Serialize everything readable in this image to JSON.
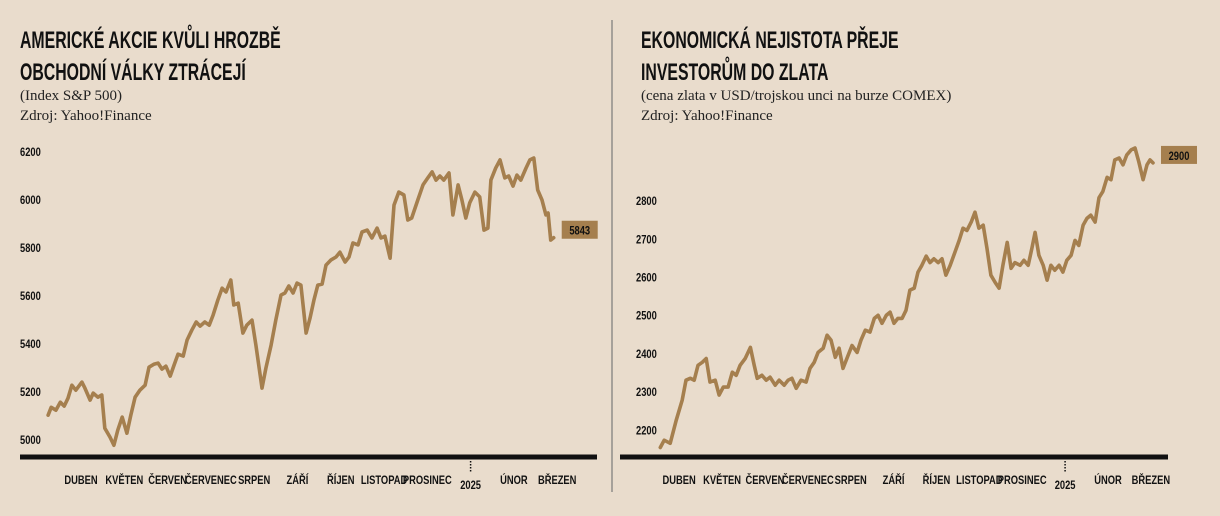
{
  "chart_data": [
    {
      "type": "line",
      "title": [
        "AMERICKÉ AKCIE KVŮLI HROZBĚ",
        "OBCHODNÍ VÁLKY ZTRÁCEJÍ"
      ],
      "subtitle": "(Index S&P 500)",
      "source": "Zdroj: Yahoo!Finance",
      "color": "#a57f4e",
      "x": [
        -0.76,
        -0.69,
        -0.58,
        -0.48,
        -0.39,
        -0.3,
        -0.21,
        -0.12,
        0.02,
        0.09,
        0.21,
        0.28,
        0.39,
        0.48,
        0.55,
        0.67,
        0.76,
        0.85,
        0.95,
        1.06,
        1.15,
        1.25,
        1.36,
        1.48,
        1.57,
        1.69,
        1.78,
        1.87,
        1.96,
        2.06,
        2.15,
        2.24,
        2.36,
        2.45,
        2.56,
        2.66,
        2.75,
        2.86,
        2.96,
        3.05,
        3.16,
        3.26,
        3.35,
        3.46,
        3.53,
        3.63,
        3.74,
        3.83,
        3.95,
        4.04,
        4.18,
        4.27,
        4.39,
        4.5,
        4.62,
        4.71,
        4.8,
        4.9,
        4.99,
        5.08,
        5.2,
        5.29,
        5.38,
        5.47,
        5.57,
        5.66,
        5.77,
        5.89,
        5.98,
        6.1,
        6.19,
        6.28,
        6.4,
        6.49,
        6.61,
        6.72,
        6.84,
        6.93,
        7.02,
        7.14,
        7.23,
        7.34,
        7.46,
        7.55,
        7.64,
        7.78,
        7.9,
        8.01,
        8.11,
        8.2,
        8.29,
        8.38,
        8.5,
        8.59,
        8.71,
        8.8,
        8.89,
        8.98,
        9.1,
        9.21,
        9.31,
        9.4,
        9.47,
        9.58,
        9.68,
        9.79,
        9.88,
        9.98,
        10.07,
        10.16,
        10.28,
        10.37,
        10.46,
        10.55,
        10.65,
        10.74,
        10.79,
        10.85,
        10.92
      ],
      "values": [
        5104,
        5137,
        5125,
        5158,
        5142,
        5175,
        5229,
        5208,
        5242,
        5217,
        5167,
        5196,
        5179,
        5188,
        5050,
        5013,
        4979,
        5042,
        5096,
        5029,
        5104,
        5179,
        5208,
        5229,
        5304,
        5317,
        5321,
        5296,
        5308,
        5267,
        5313,
        5358,
        5350,
        5417,
        5458,
        5492,
        5475,
        5492,
        5479,
        5521,
        5583,
        5633,
        5617,
        5667,
        5563,
        5571,
        5446,
        5479,
        5500,
        5396,
        5217,
        5300,
        5396,
        5500,
        5604,
        5613,
        5642,
        5613,
        5654,
        5646,
        5446,
        5508,
        5583,
        5646,
        5650,
        5729,
        5750,
        5763,
        5783,
        5742,
        5763,
        5821,
        5813,
        5867,
        5875,
        5842,
        5883,
        5842,
        5850,
        5758,
        5979,
        6033,
        6021,
        5917,
        5925,
        6000,
        6063,
        6092,
        6117,
        6083,
        6100,
        6083,
        6113,
        5938,
        6063,
        6000,
        5925,
        5988,
        6033,
        6013,
        5875,
        5883,
        6083,
        6133,
        6167,
        6092,
        6100,
        6058,
        6104,
        6083,
        6133,
        6167,
        6175,
        6042,
        6000,
        5938,
        5946,
        5833,
        5843
      ],
      "xlim": [
        -1.41,
        11.92
      ],
      "ylim": [
        4930,
        6250
      ],
      "yticks": [
        5000,
        5200,
        5400,
        5600,
        5800,
        6000,
        6200
      ],
      "xticks": [
        {
          "value": 0,
          "label": "DUBEN"
        },
        {
          "value": 1,
          "label": "KVĚTEN"
        },
        {
          "value": 2,
          "label": "ČERVEN"
        },
        {
          "value": 3,
          "label": "ČERVENEC"
        },
        {
          "value": 4,
          "label": "SRPEN"
        },
        {
          "value": 5,
          "label": "ZÁŘÍ"
        },
        {
          "value": 6,
          "label": "ŘÍJEN"
        },
        {
          "value": 7,
          "label": "LISTOPAD"
        },
        {
          "value": 8,
          "label": "PROSINEC"
        },
        {
          "value": 9,
          "label": "2025"
        },
        {
          "value": 10,
          "label": "ÚNOR"
        },
        {
          "value": 11,
          "label": "BŘEZEN"
        }
      ]
    },
    {
      "type": "line",
      "title": [
        "EKONOMICKÁ NEJISTOTA PŘEJE",
        "INVESTORŮM DO ZLATA"
      ],
      "subtitle": "(cena zlata v USD/trojskou unci na burze COMEX)",
      "source": "Zdroj: Yahoo!Finance",
      "color": "#a57f4e",
      "x": [
        -0.44,
        -0.35,
        -0.21,
        -0.07,
        0.07,
        0.16,
        0.26,
        0.35,
        0.44,
        0.54,
        0.63,
        0.72,
        0.84,
        0.93,
        1.03,
        1.14,
        1.24,
        1.33,
        1.42,
        1.54,
        1.66,
        1.75,
        1.82,
        1.93,
        2.03,
        2.12,
        2.24,
        2.33,
        2.45,
        2.54,
        2.63,
        2.73,
        2.84,
        2.96,
        3.05,
        3.15,
        3.24,
        3.36,
        3.45,
        3.54,
        3.64,
        3.73,
        3.82,
        3.94,
        4.03,
        4.15,
        4.24,
        4.34,
        4.45,
        4.55,
        4.64,
        4.73,
        4.83,
        4.92,
        5.01,
        5.1,
        5.2,
        5.29,
        5.38,
        5.48,
        5.57,
        5.66,
        5.76,
        5.85,
        5.94,
        6.04,
        6.13,
        6.22,
        6.32,
        6.43,
        6.53,
        6.62,
        6.71,
        6.81,
        6.9,
        6.99,
        7.09,
        7.18,
        7.27,
        7.37,
        7.46,
        7.55,
        7.65,
        7.74,
        7.83,
        7.95,
        8.04,
        8.14,
        8.23,
        8.3,
        8.39,
        8.49,
        8.58,
        8.67,
        8.76,
        8.86,
        8.95,
        9.04,
        9.14,
        9.23,
        9.32,
        9.42,
        9.51,
        9.6,
        9.7,
        9.79,
        9.88,
        9.98,
        10.07,
        10.16,
        10.26,
        10.35,
        10.44,
        10.54,
        10.63,
        10.72,
        10.82,
        10.91,
        10.98,
        11.05
      ],
      "values": [
        2155,
        2174,
        2166,
        2226,
        2279,
        2331,
        2336,
        2331,
        2370,
        2378,
        2388,
        2326,
        2331,
        2292,
        2313,
        2313,
        2352,
        2344,
        2370,
        2388,
        2417,
        2370,
        2336,
        2344,
        2331,
        2339,
        2318,
        2331,
        2318,
        2331,
        2336,
        2310,
        2331,
        2326,
        2362,
        2378,
        2404,
        2415,
        2449,
        2436,
        2391,
        2415,
        2362,
        2396,
        2422,
        2404,
        2436,
        2462,
        2457,
        2493,
        2501,
        2480,
        2501,
        2509,
        2480,
        2493,
        2493,
        2514,
        2567,
        2572,
        2614,
        2632,
        2656,
        2639,
        2649,
        2639,
        2649,
        2606,
        2632,
        2666,
        2697,
        2729,
        2723,
        2745,
        2771,
        2729,
        2737,
        2676,
        2606,
        2587,
        2572,
        2632,
        2692,
        2624,
        2639,
        2632,
        2645,
        2632,
        2679,
        2718,
        2658,
        2632,
        2593,
        2632,
        2619,
        2632,
        2614,
        2645,
        2658,
        2697,
        2684,
        2737,
        2755,
        2763,
        2745,
        2809,
        2825,
        2862,
        2856,
        2908,
        2913,
        2895,
        2921,
        2934,
        2939,
        2903,
        2856,
        2895,
        2908,
        2900
      ],
      "xlim": [
        -1.38,
        11.4
      ],
      "ylim": [
        2130,
        2960
      ],
      "yticks": [
        2200,
        2300,
        2400,
        2500,
        2600,
        2700,
        2800
      ],
      "xticks": [
        {
          "value": 0,
          "label": "DUBEN"
        },
        {
          "value": 1,
          "label": "KVĚTEN"
        },
        {
          "value": 2,
          "label": "ČERVEN"
        },
        {
          "value": 3,
          "label": "ČERVENEC"
        },
        {
          "value": 4,
          "label": "SRPEN"
        },
        {
          "value": 5,
          "label": "ZÁŘÍ"
        },
        {
          "value": 6,
          "label": "ŘÍJEN"
        },
        {
          "value": 7,
          "label": "LISTOPAD"
        },
        {
          "value": 8,
          "label": "PROSINEC"
        },
        {
          "value": 9,
          "label": "2025"
        },
        {
          "value": 10,
          "label": "ÚNOR"
        },
        {
          "value": 11,
          "label": "BŘEZEN"
        }
      ]
    }
  ]
}
